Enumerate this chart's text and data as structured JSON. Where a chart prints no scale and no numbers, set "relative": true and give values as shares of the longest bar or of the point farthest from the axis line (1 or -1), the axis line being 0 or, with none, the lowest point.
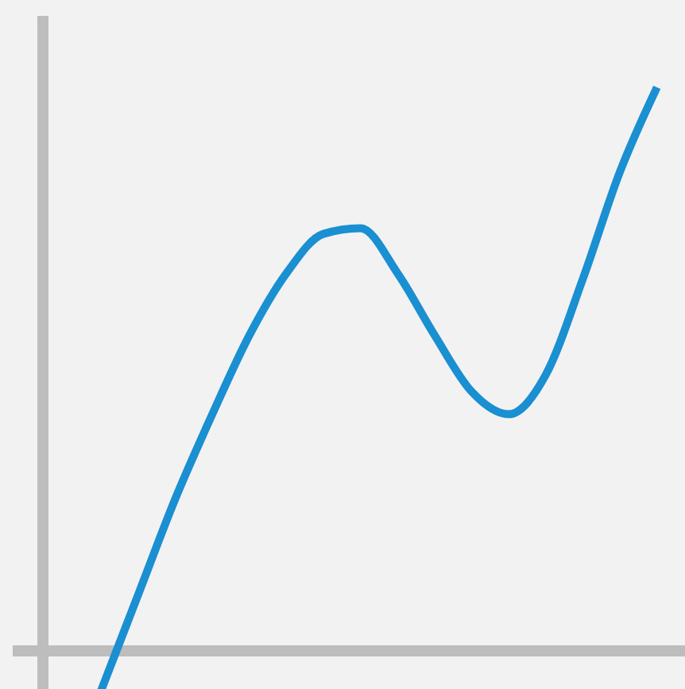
{
  "chart_data": {
    "type": "line",
    "relative": true,
    "color": "#1a8fd1",
    "categories": [
      null,
      null,
      null,
      null,
      null,
      null,
      null,
      null,
      null,
      null,
      null,
      null,
      null,
      null,
      null,
      null
    ],
    "values": [
      -0.07,
      0.1,
      0.27,
      0.42,
      0.56,
      0.67,
      0.74,
      0.75,
      0.67,
      0.56,
      0.46,
      0.42,
      0.49,
      0.66,
      0.85,
      1.0
    ]
  }
}
